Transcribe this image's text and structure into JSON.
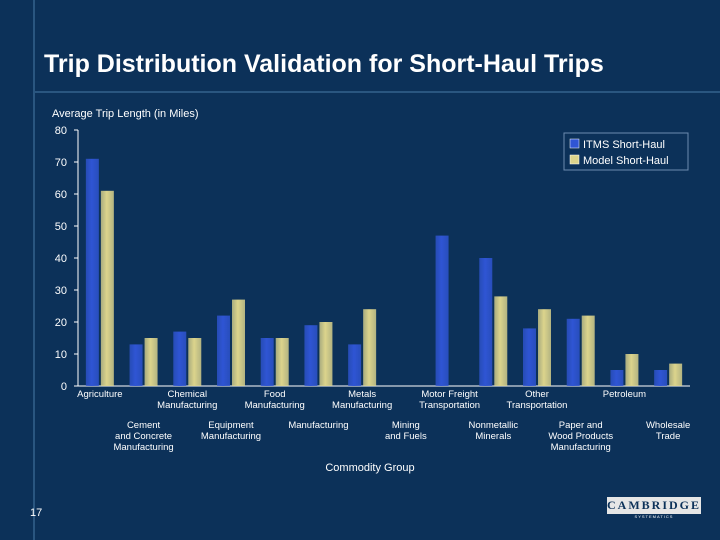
{
  "title": "Trip Distribution Validation for Short-Haul Trips",
  "page_number": "17",
  "logo": {
    "name": "CAMBRIDGE",
    "subtitle": "SYSTEMATICS"
  },
  "colors": {
    "background": "#0c3159",
    "itms": "#2f55d4",
    "model": "#dcd48c",
    "text": "#ffffff"
  },
  "chart_data": {
    "type": "bar",
    "ylabel": "Average Trip Length (in Miles)",
    "xlabel": "Commodity Group",
    "ylim": [
      0,
      80
    ],
    "yticks": [
      0,
      10,
      20,
      30,
      40,
      50,
      60,
      70,
      80
    ],
    "legend_position": "top-right",
    "categories": [
      "Agriculture",
      "Cement and Concrete Manufacturing",
      "Chemical Manufacturing",
      "Equipment Manufacturing",
      "Food Manufacturing",
      "Manufacturing",
      "Metals Manufacturing",
      "Mining and Fuels",
      "Motor Freight Transportation",
      "Nonmetallic Minerals",
      "Other Transportation",
      "Paper and Wood Products Manufacturing",
      "Petroleum",
      "Wholesale Trade"
    ],
    "tick_label_lines": [
      [
        "Agriculture"
      ],
      [
        "Cement",
        "and Concrete",
        "Manufacturing"
      ],
      [
        "Chemical",
        "Manufacturing"
      ],
      [
        "Equipment",
        "Manufacturing"
      ],
      [
        "Food",
        "Manufacturing"
      ],
      [
        "Manufacturing"
      ],
      [
        "Metals",
        "Manufacturing"
      ],
      [
        "Mining",
        "and Fuels"
      ],
      [
        "Motor Freight",
        "Transportation"
      ],
      [
        "Nonmetallic",
        "Minerals"
      ],
      [
        "Other",
        "Transportation"
      ],
      [
        "Paper and",
        "Wood Products",
        "Manufacturing"
      ],
      [
        "Petroleum"
      ],
      [
        "Wholesale",
        "Trade"
      ]
    ],
    "series": [
      {
        "name": "ITMS Short-Haul",
        "values": [
          71,
          13,
          17,
          22,
          15,
          19,
          13,
          null,
          47,
          40,
          18,
          21,
          5,
          5
        ]
      },
      {
        "name": "Model Short-Haul",
        "values": [
          61,
          15,
          15,
          27,
          15,
          20,
          24,
          null,
          null,
          28,
          24,
          22,
          10,
          7
        ]
      }
    ]
  }
}
